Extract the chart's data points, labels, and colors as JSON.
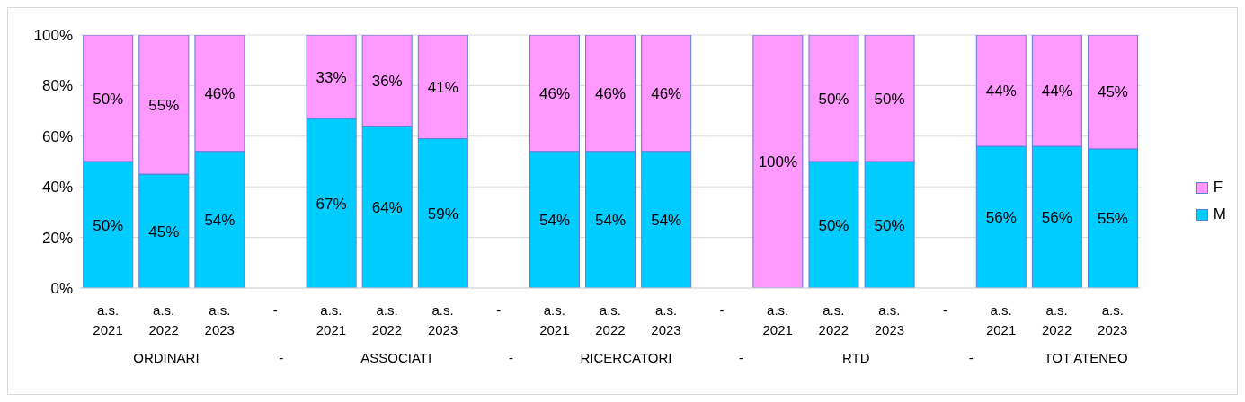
{
  "chart_data": {
    "type": "bar",
    "stacked": true,
    "categories": [
      "a.s. 2021",
      "a.s. 2022",
      "a.s. 2023",
      "-",
      "a.s. 2021",
      "a.s. 2022",
      "a.s. 2023",
      "-",
      "a.s. 2021",
      "a.s. 2022",
      "a.s. 2023",
      "-",
      "a.s. 2021",
      "a.s. 2022",
      "a.s. 2023",
      "-",
      "a.s. 2021",
      "a.s. 2022",
      "a.s. 2023"
    ],
    "series": [
      {
        "name": "M",
        "color": "#00ccff",
        "values": [
          50,
          45,
          54,
          null,
          67,
          64,
          59,
          null,
          54,
          54,
          54,
          null,
          0,
          50,
          50,
          null,
          56,
          56,
          55
        ],
        "value_labels": [
          "50%",
          "45%",
          "54%",
          null,
          "67%",
          "64%",
          "59%",
          null,
          "54%",
          "54%",
          "54%",
          null,
          null,
          "50%",
          "50%",
          null,
          "56%",
          "56%",
          "55%"
        ]
      },
      {
        "name": "F",
        "color": "#ff99ff",
        "values": [
          50,
          55,
          46,
          null,
          33,
          36,
          41,
          null,
          46,
          46,
          46,
          null,
          100,
          50,
          50,
          null,
          44,
          44,
          45
        ],
        "value_labels": [
          "50%",
          "55%",
          "46%",
          null,
          "33%",
          "36%",
          "41%",
          null,
          "46%",
          "46%",
          "46%",
          null,
          "100%",
          "50%",
          "50%",
          null,
          "44%",
          "44%",
          "45%"
        ]
      }
    ],
    "ylim": [
      0,
      100
    ],
    "yticks": [
      {
        "value": 0,
        "label": "0%"
      },
      {
        "value": 20,
        "label": "20%"
      },
      {
        "value": 40,
        "label": "40%"
      },
      {
        "value": 60,
        "label": "60%"
      },
      {
        "value": 80,
        "label": "80%"
      },
      {
        "value": 100,
        "label": "100%"
      }
    ],
    "grid": "y",
    "legend": "right",
    "annotations": [
      "ORDINARI",
      "-",
      "ASSOCIATI",
      "-",
      "RICERCATORI",
      "-",
      "RTD",
      "-",
      "TOT ATENEO"
    ]
  }
}
